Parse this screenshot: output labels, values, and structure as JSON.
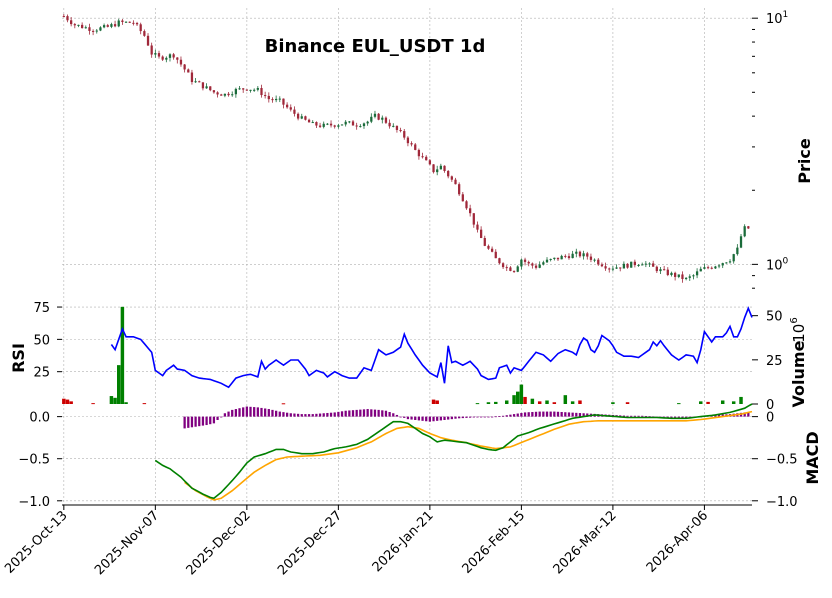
{
  "chart_data": {
    "type": "candlestick",
    "title": "Binance EUL_USDT 1d",
    "colors": {
      "up": "#1a6b3a",
      "down": "#a0283a",
      "vol_up": "#008000",
      "vol_down": "#cc0000",
      "rsi": "#0000ff",
      "macd": "#008000",
      "signal": "#ffa500",
      "hist": "#800080",
      "grid": "#b0b0b0"
    },
    "price_panel": {
      "ylabel": "Price",
      "scale": "log",
      "ylim": [
        0.73,
        11.0
      ],
      "major_tick_labels": [
        {
          "base": "10",
          "exp": "1",
          "value": 10
        },
        {
          "base": "10",
          "exp": "0",
          "value": 1
        }
      ],
      "minor_ticks": [
        0.8,
        0.9,
        2,
        3,
        4,
        5,
        6,
        7,
        8,
        9
      ]
    },
    "volume_panel": {
      "ylabel": "Volume",
      "multiplier": "10",
      "multiplier_exp": "6",
      "ylim": [
        0,
        60
      ],
      "tick_labels": [
        "0",
        "25",
        "50"
      ],
      "ticks": [
        0,
        25,
        50
      ]
    },
    "rsi_panel": {
      "ylabel": "RSI",
      "ylim": [
        0,
        82
      ],
      "tick_labels": [
        "25",
        "50",
        "75"
      ],
      "ticks": [
        25,
        50,
        75
      ]
    },
    "macd_panel": {
      "ylabel": "MACD",
      "ylim": [
        -1.05,
        0.15
      ],
      "left_tick_labels": [
        "0.0",
        "−0.5",
        "−1.0"
      ],
      "right_tick_labels": [
        "0",
        "−0.5",
        "−1.0"
      ],
      "ticks": [
        0,
        -0.5,
        -1.0
      ]
    },
    "x_axis": {
      "tick_labels": [
        "2025-Oct-13",
        "2025-Nov-07",
        "2025-Dec-02",
        "2025-Dec-27",
        "2026-Jan-21",
        "2026-Feb-15",
        "2026-Mar-12",
        "2026-Apr-06"
      ],
      "ticks": [
        0,
        25,
        50,
        75,
        100,
        125,
        150,
        175
      ],
      "n_days": 187
    },
    "price_anchors": [
      [
        0,
        10.2
      ],
      [
        3,
        9.4
      ],
      [
        8,
        9.0
      ],
      [
        12,
        9.2
      ],
      [
        15,
        9.6
      ],
      [
        19,
        9.6
      ],
      [
        22,
        8.5
      ],
      [
        24,
        7.2
      ],
      [
        26,
        6.9
      ],
      [
        28,
        7.0
      ],
      [
        30,
        7.1
      ],
      [
        32,
        6.5
      ],
      [
        35,
        5.6
      ],
      [
        38,
        5.3
      ],
      [
        41,
        5.0
      ],
      [
        44,
        4.9
      ],
      [
        47,
        5.1
      ],
      [
        50,
        5.2
      ],
      [
        53,
        5.1
      ],
      [
        56,
        4.7
      ],
      [
        59,
        4.6
      ],
      [
        62,
        4.2
      ],
      [
        65,
        3.9
      ],
      [
        68,
        3.7
      ],
      [
        71,
        3.65
      ],
      [
        74,
        3.7
      ],
      [
        77,
        3.75
      ],
      [
        80,
        3.7
      ],
      [
        83,
        3.8
      ],
      [
        85,
        4.0
      ],
      [
        87,
        3.9
      ],
      [
        90,
        3.6
      ],
      [
        93,
        3.3
      ],
      [
        96,
        2.9
      ],
      [
        99,
        2.6
      ],
      [
        101,
        2.4
      ],
      [
        103,
        2.5
      ],
      [
        105,
        2.3
      ],
      [
        107,
        2.1
      ],
      [
        109,
        1.85
      ],
      [
        111,
        1.6
      ],
      [
        113,
        1.35
      ],
      [
        115,
        1.2
      ],
      [
        118,
        1.05
      ],
      [
        121,
        0.97
      ],
      [
        123,
        0.95
      ],
      [
        125,
        1.05
      ],
      [
        127,
        1.0
      ],
      [
        129,
        0.98
      ],
      [
        131,
        1.02
      ],
      [
        134,
        1.05
      ],
      [
        137,
        1.08
      ],
      [
        140,
        1.1
      ],
      [
        143,
        1.08
      ],
      [
        146,
        1.02
      ],
      [
        149,
        0.97
      ],
      [
        152,
        0.98
      ],
      [
        155,
        1.0
      ],
      [
        158,
        1.02
      ],
      [
        161,
        0.97
      ],
      [
        164,
        0.93
      ],
      [
        167,
        0.9
      ],
      [
        170,
        0.87
      ],
      [
        172,
        0.9
      ],
      [
        174,
        0.95
      ],
      [
        177,
        0.98
      ],
      [
        180,
        1.02
      ],
      [
        182,
        1.05
      ],
      [
        184,
        1.15
      ],
      [
        185,
        1.3
      ],
      [
        186,
        1.4
      ]
    ],
    "volume_bars": [
      [
        0,
        3.0,
        0
      ],
      [
        1,
        2.5,
        0
      ],
      [
        2,
        1.5,
        0
      ],
      [
        8,
        0.5,
        0
      ],
      [
        13,
        4.5,
        1
      ],
      [
        14,
        3.5,
        1
      ],
      [
        15,
        22,
        1
      ],
      [
        16,
        55,
        1
      ],
      [
        17,
        1.0,
        1
      ],
      [
        22,
        0.5,
        0
      ],
      [
        60,
        0.4,
        0
      ],
      [
        101,
        2.5,
        0
      ],
      [
        102,
        2.0,
        0
      ],
      [
        113,
        0.5,
        1
      ],
      [
        116,
        1.0,
        1
      ],
      [
        118,
        1.2,
        1
      ],
      [
        121,
        2.0,
        1
      ],
      [
        123,
        5.0,
        1
      ],
      [
        124,
        7.0,
        1
      ],
      [
        125,
        11.0,
        1
      ],
      [
        126,
        4.0,
        0
      ],
      [
        128,
        3.0,
        1
      ],
      [
        130,
        1.5,
        0
      ],
      [
        132,
        2.0,
        1
      ],
      [
        134,
        1.0,
        0
      ],
      [
        137,
        5.0,
        1
      ],
      [
        139,
        1.5,
        1
      ],
      [
        141,
        2.0,
        0
      ],
      [
        150,
        1.0,
        1
      ],
      [
        154,
        1.0,
        0
      ],
      [
        168,
        0.5,
        1
      ],
      [
        174,
        1.5,
        1
      ],
      [
        176,
        1.2,
        0
      ],
      [
        180,
        2.0,
        1
      ],
      [
        183,
        1.5,
        1
      ],
      [
        185,
        4.0,
        1
      ]
    ],
    "rsi_anchors": [
      [
        13,
        46
      ],
      [
        14,
        42
      ],
      [
        16,
        58
      ],
      [
        17,
        52
      ],
      [
        19,
        52
      ],
      [
        21,
        50
      ],
      [
        24,
        40
      ],
      [
        25,
        26
      ],
      [
        27,
        22
      ],
      [
        28,
        26
      ],
      [
        30,
        30
      ],
      [
        31,
        27
      ],
      [
        33,
        26
      ],
      [
        35,
        22
      ],
      [
        37,
        20
      ],
      [
        40,
        19
      ],
      [
        43,
        16
      ],
      [
        45,
        13
      ],
      [
        47,
        20
      ],
      [
        49,
        22
      ],
      [
        51,
        23
      ],
      [
        53,
        21
      ],
      [
        54,
        33
      ],
      [
        55,
        27
      ],
      [
        56,
        30
      ],
      [
        58,
        34
      ],
      [
        60,
        30
      ],
      [
        62,
        34
      ],
      [
        64,
        34
      ],
      [
        66,
        27
      ],
      [
        67,
        22
      ],
      [
        69,
        26
      ],
      [
        71,
        24
      ],
      [
        72,
        21
      ],
      [
        74,
        25
      ],
      [
        76,
        22
      ],
      [
        78,
        20
      ],
      [
        80,
        20
      ],
      [
        82,
        28
      ],
      [
        84,
        26
      ],
      [
        86,
        42
      ],
      [
        88,
        38
      ],
      [
        90,
        40
      ],
      [
        92,
        44
      ],
      [
        93,
        54
      ],
      [
        94,
        47
      ],
      [
        96,
        38
      ],
      [
        98,
        30
      ],
      [
        100,
        24
      ],
      [
        102,
        21
      ],
      [
        103,
        32
      ],
      [
        104,
        16
      ],
      [
        105,
        45
      ],
      [
        106,
        32
      ],
      [
        107,
        33
      ],
      [
        109,
        30
      ],
      [
        111,
        33
      ],
      [
        113,
        27
      ],
      [
        114,
        22
      ],
      [
        116,
        19
      ],
      [
        118,
        20
      ],
      [
        119,
        28
      ],
      [
        121,
        30
      ],
      [
        122,
        24
      ],
      [
        123,
        28
      ],
      [
        125,
        26
      ],
      [
        127,
        33
      ],
      [
        129,
        40
      ],
      [
        131,
        38
      ],
      [
        133,
        33
      ],
      [
        135,
        39
      ],
      [
        137,
        42
      ],
      [
        139,
        40
      ],
      [
        140,
        38
      ],
      [
        141,
        46
      ],
      [
        142,
        51
      ],
      [
        143,
        49
      ],
      [
        144,
        42
      ],
      [
        145,
        40
      ],
      [
        146,
        45
      ],
      [
        147,
        53
      ],
      [
        149,
        49
      ],
      [
        150,
        45
      ],
      [
        151,
        40
      ],
      [
        153,
        37
      ],
      [
        155,
        37
      ],
      [
        157,
        36
      ],
      [
        159,
        40
      ],
      [
        160,
        42
      ],
      [
        161,
        48
      ],
      [
        162,
        45
      ],
      [
        163,
        49
      ],
      [
        164,
        45
      ],
      [
        166,
        38
      ],
      [
        168,
        34
      ],
      [
        169,
        36
      ],
      [
        170,
        38
      ],
      [
        172,
        37
      ],
      [
        173,
        32
      ],
      [
        174,
        42
      ],
      [
        175,
        56
      ],
      [
        176,
        52
      ],
      [
        177,
        48
      ],
      [
        178,
        52
      ],
      [
        180,
        52
      ],
      [
        181,
        55
      ],
      [
        182,
        60
      ],
      [
        183,
        52
      ],
      [
        184,
        52
      ],
      [
        185,
        58
      ],
      [
        186,
        67
      ],
      [
        187,
        74
      ],
      [
        188,
        67
      ]
    ],
    "hist_anchors": [
      [
        33,
        -0.14
      ],
      [
        36,
        -0.12
      ],
      [
        39,
        -0.1
      ],
      [
        41,
        -0.08
      ],
      [
        44,
        0.04
      ],
      [
        46,
        0.08
      ],
      [
        48,
        0.1
      ],
      [
        50,
        0.12
      ],
      [
        53,
        0.11
      ],
      [
        56,
        0.09
      ],
      [
        59,
        0.06
      ],
      [
        62,
        0.04
      ],
      [
        65,
        0.03
      ],
      [
        68,
        0.03
      ],
      [
        71,
        0.04
      ],
      [
        74,
        0.05
      ],
      [
        77,
        0.07
      ],
      [
        80,
        0.08
      ],
      [
        83,
        0.09
      ],
      [
        86,
        0.08
      ],
      [
        88,
        0.07
      ],
      [
        90,
        0.04
      ],
      [
        92,
        0.0
      ],
      [
        94,
        -0.03
      ],
      [
        96,
        -0.04
      ],
      [
        98,
        -0.05
      ],
      [
        100,
        -0.06
      ],
      [
        102,
        -0.05
      ],
      [
        104,
        -0.04
      ],
      [
        106,
        -0.03
      ],
      [
        108,
        -0.02
      ],
      [
        110,
        -0.015
      ],
      [
        112,
        -0.01
      ],
      [
        114,
        -0.005
      ],
      [
        117,
        0.0
      ],
      [
        120,
        0.01
      ],
      [
        123,
        0.03
      ],
      [
        126,
        0.05
      ],
      [
        130,
        0.06
      ],
      [
        134,
        0.06
      ],
      [
        138,
        0.05
      ],
      [
        142,
        0.04
      ],
      [
        146,
        0.03
      ],
      [
        150,
        0.02
      ],
      [
        154,
        0.01
      ],
      [
        158,
        0.01
      ],
      [
        162,
        0.0
      ],
      [
        166,
        -0.01
      ],
      [
        170,
        -0.01
      ],
      [
        174,
        0.0
      ],
      [
        178,
        0.02
      ],
      [
        182,
        0.03
      ],
      [
        186,
        0.05
      ]
    ],
    "macd_anchors": [
      [
        25,
        -0.52
      ],
      [
        27,
        -0.58
      ],
      [
        29,
        -0.62
      ],
      [
        32,
        -0.72
      ],
      [
        35,
        -0.85
      ],
      [
        38,
        -0.92
      ],
      [
        40,
        -0.96
      ],
      [
        41,
        -0.97
      ],
      [
        43,
        -0.9
      ],
      [
        46,
        -0.76
      ],
      [
        48,
        -0.66
      ],
      [
        50,
        -0.55
      ],
      [
        52,
        -0.48
      ],
      [
        55,
        -0.44
      ],
      [
        58,
        -0.39
      ],
      [
        60,
        -0.39
      ],
      [
        62,
        -0.42
      ],
      [
        65,
        -0.44
      ],
      [
        68,
        -0.44
      ],
      [
        71,
        -0.42
      ],
      [
        74,
        -0.38
      ],
      [
        77,
        -0.36
      ],
      [
        80,
        -0.33
      ],
      [
        83,
        -0.27
      ],
      [
        86,
        -0.18
      ],
      [
        88,
        -0.12
      ],
      [
        90,
        -0.06
      ],
      [
        92,
        -0.06
      ],
      [
        94,
        -0.08
      ],
      [
        96,
        -0.14
      ],
      [
        98,
        -0.2
      ],
      [
        100,
        -0.24
      ],
      [
        102,
        -0.3
      ],
      [
        104,
        -0.28
      ],
      [
        106,
        -0.29
      ],
      [
        108,
        -0.3
      ],
      [
        110,
        -0.31
      ],
      [
        112,
        -0.34
      ],
      [
        114,
        -0.37
      ],
      [
        116,
        -0.39
      ],
      [
        118,
        -0.4
      ],
      [
        120,
        -0.37
      ],
      [
        122,
        -0.3
      ],
      [
        124,
        -0.23
      ],
      [
        127,
        -0.19
      ],
      [
        130,
        -0.14
      ],
      [
        133,
        -0.1
      ],
      [
        136,
        -0.06
      ],
      [
        139,
        -0.02
      ],
      [
        142,
        0.0
      ],
      [
        145,
        0.02
      ],
      [
        148,
        0.01
      ],
      [
        151,
        0.0
      ],
      [
        154,
        -0.01
      ],
      [
        158,
        -0.01
      ],
      [
        162,
        -0.01
      ],
      [
        166,
        -0.02
      ],
      [
        170,
        -0.02
      ],
      [
        174,
        0.0
      ],
      [
        178,
        0.02
      ],
      [
        182,
        0.05
      ],
      [
        186,
        0.1
      ],
      [
        188,
        0.15
      ]
    ],
    "signal_anchors": [
      [
        33,
        -0.78
      ],
      [
        36,
        -0.88
      ],
      [
        39,
        -0.95
      ],
      [
        41,
        -0.99
      ],
      [
        43,
        -0.97
      ],
      [
        46,
        -0.88
      ],
      [
        49,
        -0.77
      ],
      [
        52,
        -0.66
      ],
      [
        55,
        -0.58
      ],
      [
        58,
        -0.51
      ],
      [
        61,
        -0.48
      ],
      [
        65,
        -0.47
      ],
      [
        70,
        -0.46
      ],
      [
        75,
        -0.43
      ],
      [
        80,
        -0.37
      ],
      [
        84,
        -0.3
      ],
      [
        88,
        -0.2
      ],
      [
        91,
        -0.14
      ],
      [
        94,
        -0.12
      ],
      [
        97,
        -0.14
      ],
      [
        100,
        -0.2
      ],
      [
        103,
        -0.25
      ],
      [
        106,
        -0.28
      ],
      [
        110,
        -0.31
      ],
      [
        114,
        -0.35
      ],
      [
        118,
        -0.38
      ],
      [
        122,
        -0.36
      ],
      [
        126,
        -0.29
      ],
      [
        130,
        -0.22
      ],
      [
        134,
        -0.15
      ],
      [
        138,
        -0.09
      ],
      [
        142,
        -0.06
      ],
      [
        146,
        -0.05
      ],
      [
        150,
        -0.05
      ],
      [
        155,
        -0.05
      ],
      [
        160,
        -0.05
      ],
      [
        165,
        -0.05
      ],
      [
        170,
        -0.05
      ],
      [
        175,
        -0.03
      ],
      [
        180,
        0.0
      ],
      [
        185,
        0.03
      ],
      [
        188,
        0.06
      ]
    ]
  }
}
